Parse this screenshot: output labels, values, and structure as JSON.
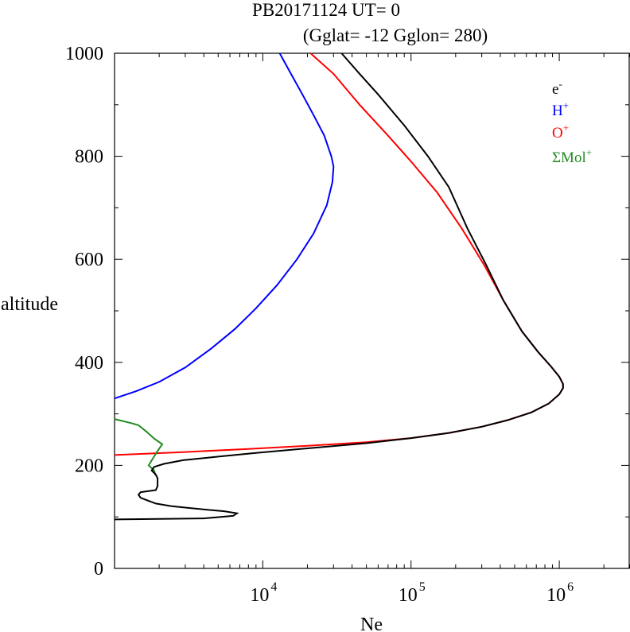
{
  "chart_data": {
    "type": "line",
    "title_line1": "PB20171124   UT=  0",
    "title_line2": "(Gglat= -12   Gglon=  280)",
    "xlabel": "Ne",
    "ylabel": "altitude",
    "x_scale": "log",
    "xlim": [
      1000,
      3000000
    ],
    "ylim": [
      0,
      1000
    ],
    "x_ticks": [
      {
        "value": 10000,
        "base": "10",
        "exp": "4"
      },
      {
        "value": 100000,
        "base": "10",
        "exp": "5"
      },
      {
        "value": 1000000,
        "base": "10",
        "exp": "6"
      }
    ],
    "y_ticks": [
      0,
      200,
      400,
      600,
      800,
      1000
    ],
    "grid": false,
    "legend_position": "top-right",
    "series": [
      {
        "name": "e-",
        "color": "#000000",
        "points": [
          [
            1000,
            95
          ],
          [
            4000,
            97
          ],
          [
            6300,
            102
          ],
          [
            6700,
            107
          ],
          [
            5500,
            111
          ],
          [
            3500,
            116
          ],
          [
            2400,
            121
          ],
          [
            1900,
            126
          ],
          [
            1700,
            131
          ],
          [
            1500,
            137
          ],
          [
            1450,
            143
          ],
          [
            1500,
            148
          ],
          [
            1900,
            152
          ],
          [
            1950,
            160
          ],
          [
            1950,
            175
          ],
          [
            1900,
            182
          ],
          [
            1780,
            190
          ],
          [
            1850,
            197
          ],
          [
            2150,
            203
          ],
          [
            2900,
            210
          ],
          [
            5000,
            217
          ],
          [
            9000,
            224
          ],
          [
            20000,
            233
          ],
          [
            50000,
            243
          ],
          [
            100000,
            253
          ],
          [
            180000,
            263
          ],
          [
            300000,
            275
          ],
          [
            450000,
            288
          ],
          [
            650000,
            303
          ],
          [
            850000,
            320
          ],
          [
            1000000,
            338
          ],
          [
            1060000,
            350
          ],
          [
            1060000,
            358
          ],
          [
            1000000,
            372
          ],
          [
            880000,
            392
          ],
          [
            720000,
            420
          ],
          [
            560000,
            460
          ],
          [
            420000,
            520
          ],
          [
            320000,
            590
          ],
          [
            240000,
            660
          ],
          [
            180000,
            740
          ],
          [
            130000,
            800
          ],
          [
            90000,
            860
          ],
          [
            60000,
            920
          ],
          [
            45000,
            960
          ],
          [
            34000,
            1000
          ]
        ]
      },
      {
        "name": "H+",
        "color": "#0000ff",
        "points": [
          [
            1000,
            330
          ],
          [
            1400,
            344
          ],
          [
            2000,
            362
          ],
          [
            3000,
            390
          ],
          [
            4500,
            427
          ],
          [
            6500,
            465
          ],
          [
            9000,
            505
          ],
          [
            12500,
            550
          ],
          [
            17000,
            600
          ],
          [
            22000,
            650
          ],
          [
            27000,
            705
          ],
          [
            29500,
            750
          ],
          [
            30000,
            780
          ],
          [
            29000,
            800
          ],
          [
            26000,
            840
          ],
          [
            22000,
            880
          ],
          [
            18500,
            920
          ],
          [
            15500,
            960
          ],
          [
            13000,
            1000
          ]
        ]
      },
      {
        "name": "O+",
        "color": "#ff0000",
        "points": [
          [
            1000,
            220
          ],
          [
            3000,
            226
          ],
          [
            8000,
            232
          ],
          [
            20000,
            238
          ],
          [
            50000,
            245
          ],
          [
            100000,
            253
          ],
          [
            180000,
            263
          ],
          [
            300000,
            275
          ],
          [
            450000,
            288
          ],
          [
            650000,
            303
          ],
          [
            850000,
            320
          ],
          [
            1000000,
            338
          ],
          [
            1060000,
            350
          ],
          [
            1060000,
            358
          ],
          [
            1000000,
            372
          ],
          [
            880000,
            392
          ],
          [
            720000,
            420
          ],
          [
            560000,
            460
          ],
          [
            420000,
            520
          ],
          [
            310000,
            590
          ],
          [
            220000,
            660
          ],
          [
            150000,
            730
          ],
          [
            100000,
            790
          ],
          [
            70000,
            840
          ],
          [
            45000,
            900
          ],
          [
            30000,
            960
          ],
          [
            21000,
            1000
          ]
        ]
      },
      {
        "name": "ΣMol+",
        "color": "#228b22",
        "points": [
          [
            1000,
            290
          ],
          [
            1300,
            282
          ],
          [
            1450,
            278
          ],
          [
            1650,
            265
          ],
          [
            1850,
            252
          ],
          [
            2100,
            241
          ],
          [
            1950,
            228
          ],
          [
            1800,
            212
          ],
          [
            1700,
            200
          ],
          [
            1850,
            190
          ],
          [
            1900,
            180
          ]
        ]
      }
    ]
  },
  "legend": [
    {
      "base": "e",
      "sup": "-",
      "color": "#000000"
    },
    {
      "base": "H",
      "sup": "+",
      "color": "#0000ff"
    },
    {
      "base": "O",
      "sup": "+",
      "color": "#ff0000"
    },
    {
      "base": "ΣMol",
      "sup": "+",
      "color": "#228b22"
    }
  ]
}
